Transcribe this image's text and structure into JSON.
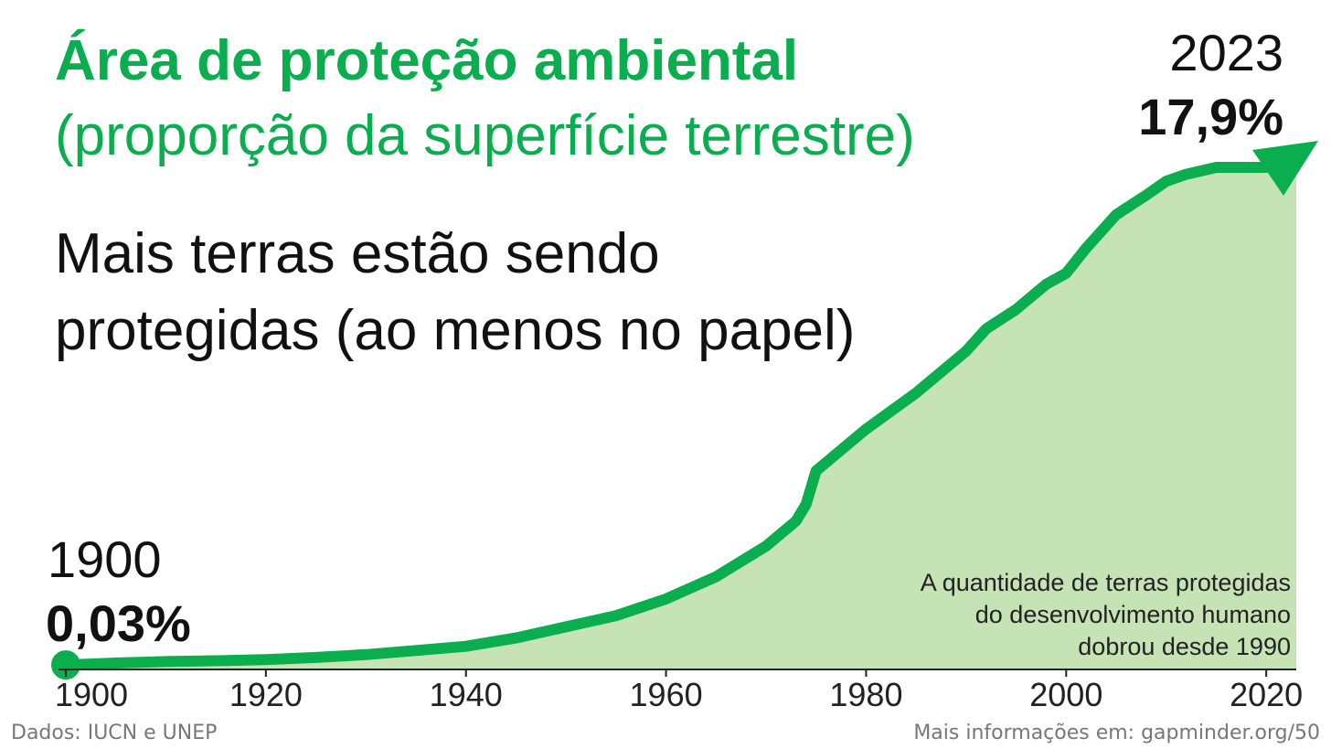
{
  "title": "Área de proteção ambiental",
  "subtitle": "(proporção da superfície terrestre)",
  "headline": {
    "line1": "Mais terras estão sendo",
    "line2": "protegidas (ao menos no papel)"
  },
  "start_label": {
    "year": "1900",
    "value": "0,03%"
  },
  "end_label": {
    "year": "2023",
    "value": "17,9%"
  },
  "annotation": {
    "line1": "A quantidade de terras protegidas",
    "line2": "do desenvolvimento humano",
    "line3": "dobrou desde 1990"
  },
  "source": "Dados: IUCN e UNEP",
  "more_info": "Mais informações em: gapminder.org/50",
  "colors": {
    "accent": "#0aae4e",
    "area_fill": "#c5e3b5",
    "axis": "#222222"
  },
  "chart_data": {
    "type": "area",
    "x": [
      1900,
      1905,
      1910,
      1915,
      1920,
      1925,
      1930,
      1935,
      1940,
      1945,
      1950,
      1955,
      1960,
      1965,
      1970,
      1973,
      1974,
      1975,
      1980,
      1985,
      1990,
      1992,
      1995,
      1998,
      2000,
      2002,
      2005,
      2008,
      2010,
      2012,
      2015,
      2018,
      2020,
      2023
    ],
    "values": [
      0.03,
      0.1,
      0.15,
      0.18,
      0.22,
      0.3,
      0.4,
      0.55,
      0.7,
      1.0,
      1.4,
      1.8,
      2.4,
      3.2,
      4.3,
      5.2,
      5.8,
      7.0,
      8.5,
      9.8,
      11.3,
      12.1,
      12.8,
      13.7,
      14.1,
      15.0,
      16.2,
      16.9,
      17.4,
      17.65,
      17.9,
      17.9,
      17.9,
      17.9
    ],
    "xlim": [
      1900,
      2023
    ],
    "xticks": [
      1900,
      1920,
      1940,
      1960,
      1980,
      2000,
      2020
    ],
    "grid": false,
    "legend": "none"
  }
}
